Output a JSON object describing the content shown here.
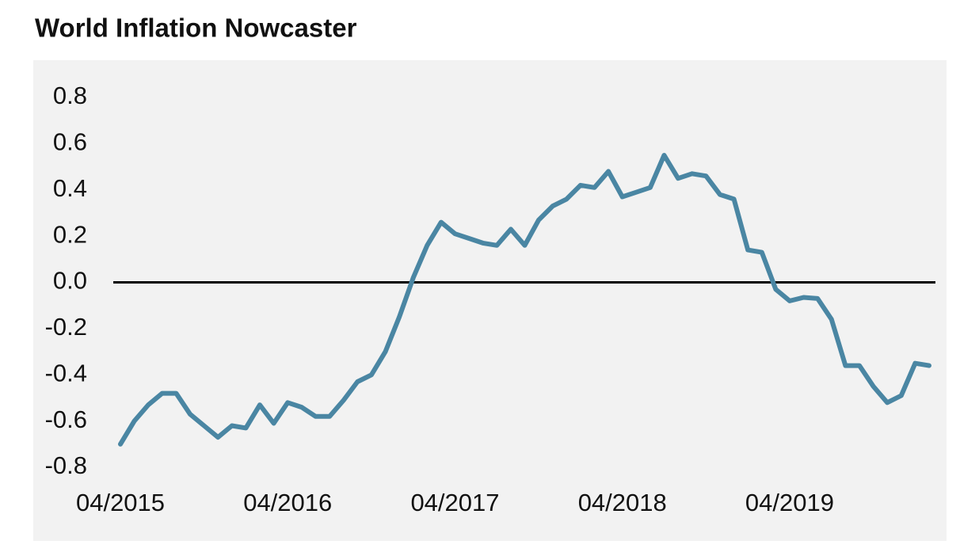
{
  "chart_data": {
    "type": "line",
    "title": "World Inflation Nowcaster",
    "categories": [
      "04/2015",
      null,
      null,
      null,
      null,
      null,
      null,
      null,
      null,
      null,
      null,
      null,
      "04/2016",
      null,
      null,
      null,
      null,
      null,
      null,
      null,
      null,
      null,
      null,
      null,
      "04/2017",
      null,
      null,
      null,
      null,
      null,
      null,
      null,
      null,
      null,
      null,
      null,
      "04/2018",
      null,
      null,
      null,
      null,
      null,
      null,
      null,
      null,
      null,
      null,
      null,
      "04/2019",
      null,
      null,
      null,
      null,
      null,
      null,
      null,
      null,
      null,
      null
    ],
    "series": [
      {
        "name": "World Inflation Nowcaster",
        "color": "#4a86a3",
        "values": [
          -0.7,
          -0.6,
          -0.53,
          -0.48,
          -0.48,
          -0.57,
          -0.62,
          -0.67,
          -0.62,
          -0.63,
          -0.53,
          -0.61,
          -0.52,
          -0.54,
          -0.58,
          -0.58,
          -0.51,
          -0.43,
          -0.4,
          -0.3,
          -0.15,
          0.02,
          0.16,
          0.26,
          0.21,
          0.19,
          0.17,
          0.16,
          0.23,
          0.16,
          0.27,
          0.33,
          0.36,
          0.42,
          0.41,
          0.48,
          0.37,
          0.39,
          0.41,
          0.55,
          0.45,
          0.47,
          0.46,
          0.38,
          0.36,
          0.14,
          0.13,
          -0.03,
          -0.08,
          -0.065,
          -0.07,
          -0.16,
          -0.36,
          -0.36,
          -0.45,
          -0.52,
          -0.49,
          -0.35,
          -0.36
        ]
      }
    ],
    "ylim": [
      -0.8,
      0.8
    ],
    "yticks": [
      0.8,
      0.6,
      0.4,
      0.2,
      {
        "value": 0,
        "label": "0.0"
      },
      -0.2,
      -0.4,
      -0.6,
      -0.8
    ],
    "zero_line": true,
    "background": "#f2f2f2"
  }
}
